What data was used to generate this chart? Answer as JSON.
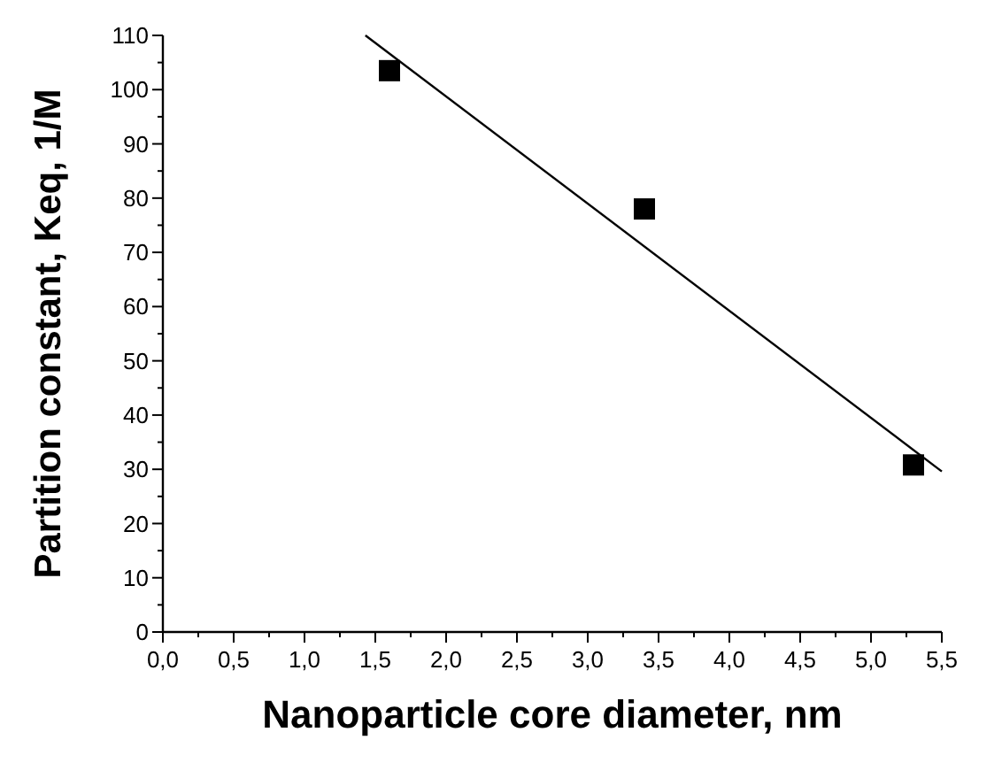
{
  "chart_data": {
    "type": "scatter",
    "xlabel": "Nanoparticle core diameter, nm",
    "ylabel": "Partition constant, Keq, 1/M",
    "xlim": [
      0,
      5.5
    ],
    "ylim": [
      0,
      110
    ],
    "xticks": [
      {
        "value": 0,
        "label": "0,0"
      },
      {
        "value": 0.25,
        "label": null
      },
      {
        "value": 0.5,
        "label": "0,5"
      },
      {
        "value": 0.75,
        "label": null
      },
      {
        "value": 1,
        "label": "1,0"
      },
      {
        "value": 1.25,
        "label": null
      },
      {
        "value": 1.5,
        "label": "1,5"
      },
      {
        "value": 1.75,
        "label": null
      },
      {
        "value": 2,
        "label": "2,0"
      },
      {
        "value": 2.25,
        "label": null
      },
      {
        "value": 2.5,
        "label": "2,5"
      },
      {
        "value": 2.75,
        "label": null
      },
      {
        "value": 3,
        "label": "3,0"
      },
      {
        "value": 3.25,
        "label": null
      },
      {
        "value": 3.5,
        "label": "3,5"
      },
      {
        "value": 3.75,
        "label": null
      },
      {
        "value": 4,
        "label": "4,0"
      },
      {
        "value": 4.25,
        "label": null
      },
      {
        "value": 4.5,
        "label": "4,5"
      },
      {
        "value": 4.75,
        "label": null
      },
      {
        "value": 5,
        "label": "5,0"
      },
      {
        "value": 5.25,
        "label": null
      },
      {
        "value": 5.5,
        "label": "5,5"
      }
    ],
    "yticks": [
      0,
      {
        "value": 5,
        "label": null
      },
      10,
      {
        "value": 15,
        "label": null
      },
      20,
      {
        "value": 25,
        "label": null
      },
      30,
      {
        "value": 35,
        "label": null
      },
      40,
      {
        "value": 45,
        "label": null
      },
      50,
      {
        "value": 55,
        "label": null
      },
      60,
      {
        "value": 65,
        "label": null
      },
      70,
      {
        "value": 75,
        "label": null
      },
      80,
      {
        "value": 85,
        "label": null
      },
      90,
      {
        "value": 95,
        "label": null
      },
      100,
      {
        "value": 105,
        "label": null
      },
      110
    ],
    "grid": false,
    "series": [
      {
        "color": "#000000",
        "marker": "square",
        "x": [
          1.6,
          3.4,
          5.3
        ],
        "values": [
          103.5,
          78,
          30.8
        ]
      },
      {
        "type": "line",
        "color": "#000000",
        "marker": "none",
        "line_style": "solid",
        "x": [
          1.43,
          5.5
        ],
        "values": [
          110,
          29.6
        ]
      }
    ]
  }
}
